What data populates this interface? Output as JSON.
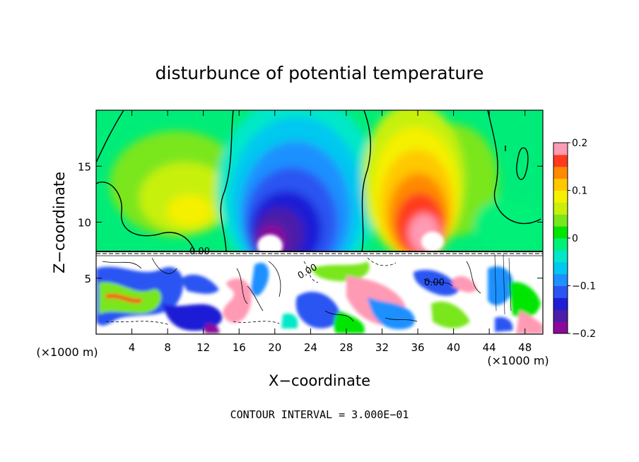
{
  "chart_data": {
    "type": "heatmap",
    "title": "disturbunce of potential temperature",
    "xlabel": "X−coordinate",
    "ylabel": "Z−coordinate",
    "x_unit_left": "(×1000 m)",
    "x_unit_right": "(×1000 m)",
    "footer": "CONTOUR INTERVAL = 3.000E−01",
    "xlim": [
      0,
      50
    ],
    "ylim": [
      0,
      20
    ],
    "x_ticks": [
      4,
      8,
      12,
      16,
      20,
      24,
      28,
      32,
      36,
      40,
      44,
      48
    ],
    "x_tick_labels": [
      "4",
      "8",
      "12",
      "16",
      "20",
      "24",
      "28",
      "32",
      "36",
      "40",
      "44",
      "48"
    ],
    "y_ticks": [
      5,
      10,
      15
    ],
    "y_tick_labels": [
      "5",
      "10",
      "15"
    ],
    "colorbar": {
      "min": -0.2,
      "max": 0.2,
      "levels": 16,
      "ticks": [
        0.2,
        0.1,
        0,
        -0.1,
        -0.2
      ],
      "tick_labels": [
        "0.2",
        "0.1",
        "0",
        "−0.1",
        "−0.2"
      ],
      "colors": [
        "#8a0a9c",
        "#4b1fa8",
        "#1f1fd6",
        "#2b55f2",
        "#1e90ff",
        "#00c8f0",
        "#00e8c8",
        "#00f078",
        "#00e600",
        "#7ae61e",
        "#c8f00a",
        "#f5f000",
        "#ffc800",
        "#ff8a00",
        "#ff3a1e",
        "#ff9ab4"
      ]
    },
    "contour_labels": [
      "0.00",
      "0.00",
      "0.00"
    ],
    "grid": false
  },
  "colors": {
    "background": "#00ec78",
    "frame": "#000000"
  }
}
